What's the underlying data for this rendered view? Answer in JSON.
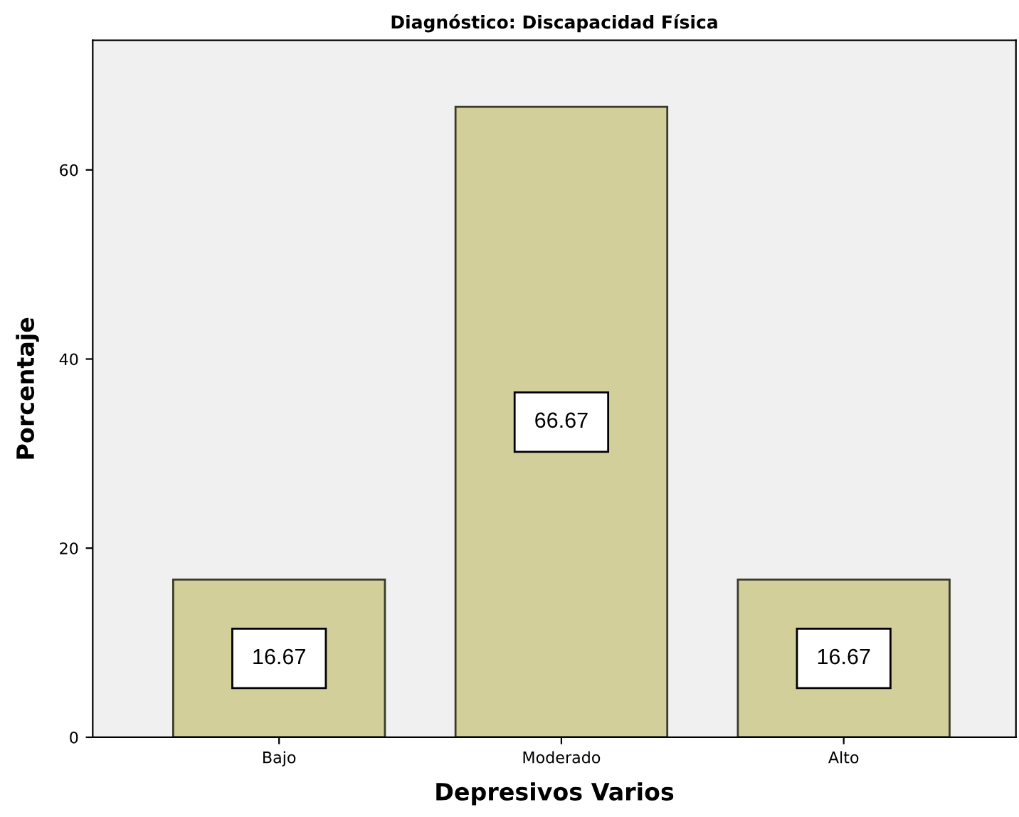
{
  "chart_data": {
    "type": "bar",
    "title": "Diagnóstico: Discapacidad Física",
    "xlabel": "Depresivos Varios",
    "ylabel": "Porcentaje",
    "categories": [
      "Bajo",
      "Moderado",
      "Alto"
    ],
    "values": [
      16.67,
      66.67,
      16.67
    ],
    "color": "#d3cf9a",
    "ylim": [
      0,
      73.7
    ],
    "yticks": [
      0,
      20,
      40,
      60
    ],
    "grid": false,
    "data_labels": true
  }
}
